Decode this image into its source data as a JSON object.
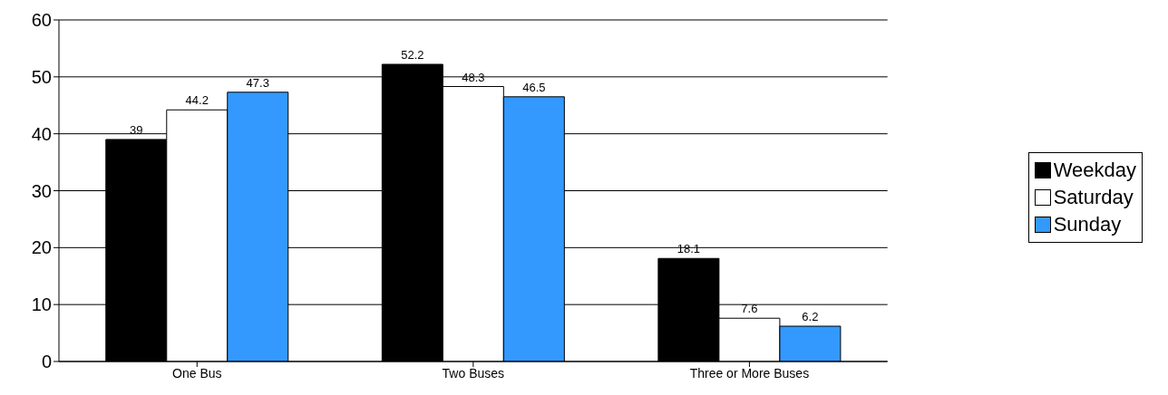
{
  "chart_data": {
    "type": "bar",
    "categories": [
      "One Bus",
      "Two Buses",
      "Three or More Buses"
    ],
    "series": [
      {
        "name": "Weekday",
        "color": "#000000",
        "values": [
          39,
          52.2,
          18.1
        ]
      },
      {
        "name": "Saturday",
        "color": "#ffffff",
        "values": [
          44.2,
          48.3,
          7.6
        ]
      },
      {
        "name": "Sunday",
        "color": "#3399ff",
        "values": [
          47.3,
          46.5,
          6.2
        ]
      }
    ],
    "ylim": [
      0,
      60
    ],
    "yticks": [
      0,
      10,
      20,
      30,
      40,
      50,
      60
    ],
    "grid": "y",
    "legend": "right",
    "data_labels": true
  }
}
